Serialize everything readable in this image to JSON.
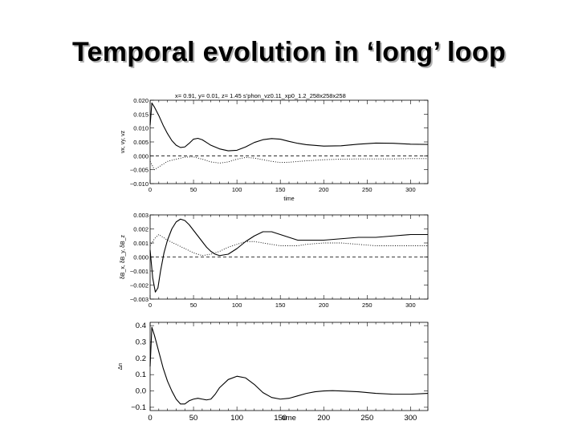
{
  "slide": {
    "title": "Temporal evolution in ‘long’ loop"
  },
  "figure_header": "x= 0.91, y= 0.01, z= 1.45 s’phon_vz0.11_xp0_1.2_258x258x258",
  "chart_data": [
    {
      "type": "line",
      "xlabel": "time",
      "ylabel": "v<sub>x</sub>, v<sub>y</sub>, v<sub>z</sub>",
      "ylabel_text": "vx, vy, vz",
      "xlim": [
        0,
        320
      ],
      "ylim": [
        -0.01,
        0.02
      ],
      "x_ticks": [
        0,
        50,
        100,
        150,
        200,
        250,
        300
      ],
      "y_ticks": [
        0.02,
        0.015,
        0.01,
        0.005,
        0.0,
        -0.005,
        -0.01
      ],
      "y_tick_labels": [
        "0.020",
        "0.015",
        "0.010",
        "0.005",
        "0.000",
        "−0.005",
        "−0.010"
      ],
      "series": [
        {
          "style": "solid",
          "x": [
            0,
            2,
            5,
            10,
            15,
            20,
            25,
            30,
            35,
            40,
            45,
            50,
            55,
            60,
            65,
            70,
            80,
            90,
            100,
            110,
            120,
            130,
            140,
            150,
            160,
            170,
            180,
            200,
            220,
            240,
            260,
            280,
            300,
            320
          ],
          "y": [
            0.011,
            0.019,
            0.0175,
            0.0145,
            0.011,
            0.008,
            0.0055,
            0.0038,
            0.003,
            0.0032,
            0.0045,
            0.006,
            0.0063,
            0.0058,
            0.0048,
            0.0038,
            0.0025,
            0.0018,
            0.002,
            0.0032,
            0.0048,
            0.0058,
            0.0062,
            0.006,
            0.0052,
            0.0045,
            0.004,
            0.0035,
            0.0036,
            0.0042,
            0.0046,
            0.0045,
            0.0042,
            0.0041
          ]
        },
        {
          "style": "dashed",
          "x": [
            0,
            320
          ],
          "y": [
            0.0,
            0.0
          ]
        },
        {
          "style": "dotted",
          "x": [
            0,
            5,
            10,
            20,
            30,
            40,
            50,
            60,
            70,
            80,
            90,
            100,
            110,
            120,
            130,
            140,
            150,
            160,
            180,
            200,
            220,
            240,
            260,
            280,
            300,
            320
          ],
          "y": [
            -0.002,
            -0.005,
            -0.004,
            -0.002,
            -0.0012,
            -0.0005,
            -0.0004,
            -0.0012,
            -0.0022,
            -0.0026,
            -0.0022,
            -0.0012,
            -0.0006,
            -0.0008,
            -0.0014,
            -0.002,
            -0.0024,
            -0.0023,
            -0.0018,
            -0.0014,
            -0.0012,
            -0.0011,
            -0.0011,
            -0.0011,
            -0.001,
            -0.001
          ]
        }
      ]
    },
    {
      "type": "line",
      "xlabel": "",
      "ylabel_text": "δB_x, δB_y, δB_z",
      "xlim": [
        0,
        320
      ],
      "ylim": [
        -0.003,
        0.003
      ],
      "x_ticks": [
        0,
        50,
        100,
        150,
        200,
        250,
        300
      ],
      "y_ticks": [
        0.003,
        0.002,
        0.001,
        0.0,
        -0.001,
        -0.002,
        -0.003
      ],
      "y_tick_labels": [
        "0.003",
        "0.002",
        "0.001",
        "0.000",
        "−0.001",
        "−0.002",
        "−0.003"
      ],
      "series": [
        {
          "style": "solid",
          "x": [
            0,
            3,
            6,
            9,
            12,
            16,
            20,
            25,
            30,
            35,
            40,
            45,
            50,
            55,
            60,
            65,
            70,
            75,
            80,
            90,
            100,
            110,
            120,
            130,
            140,
            150,
            160,
            170,
            180,
            200,
            220,
            240,
            260,
            280,
            300,
            320
          ],
          "y": [
            0.0005,
            -0.0015,
            -0.0025,
            -0.0022,
            -0.001,
            0.0003,
            0.0012,
            0.002,
            0.0025,
            0.0027,
            0.0026,
            0.0023,
            0.0019,
            0.0015,
            0.0011,
            0.0007,
            0.0004,
            0.0002,
            0.0001,
            0.0002,
            0.0006,
            0.0011,
            0.0015,
            0.0018,
            0.0018,
            0.0016,
            0.0014,
            0.0012,
            0.0012,
            0.0012,
            0.0013,
            0.0014,
            0.0014,
            0.0015,
            0.0016,
            0.0016
          ]
        },
        {
          "style": "dashed",
          "x": [
            0,
            320
          ],
          "y": [
            0.0,
            0.0
          ]
        },
        {
          "style": "dotted",
          "x": [
            0,
            5,
            10,
            15,
            20,
            30,
            40,
            50,
            60,
            70,
            80,
            90,
            100,
            110,
            120,
            130,
            140,
            150,
            160,
            170,
            180,
            200,
            220,
            240,
            260,
            280,
            300,
            320
          ],
          "y": [
            0.0008,
            0.0013,
            0.0016,
            0.0014,
            0.0012,
            0.0009,
            0.0006,
            0.0003,
            0.0001,
            0.0002,
            0.0004,
            0.0007,
            0.0009,
            0.0011,
            0.0011,
            0.001,
            0.0009,
            0.0008,
            0.0008,
            0.0008,
            0.0009,
            0.001,
            0.001,
            0.0009,
            0.0008,
            0.0008,
            0.0008,
            0.0008
          ]
        }
      ]
    },
    {
      "type": "line",
      "xlabel": "time",
      "ylabel_text": "Δn",
      "xlim": [
        0,
        320
      ],
      "ylim": [
        -0.12,
        0.42
      ],
      "x_ticks": [
        0,
        50,
        100,
        150,
        200,
        250,
        300
      ],
      "y_ticks": [
        0.4,
        0.3,
        0.2,
        0.1,
        0.0,
        -0.1
      ],
      "y_tick_labels": [
        "0.4",
        "0.3",
        "0.2",
        "0.1",
        "0.0",
        "−0.1"
      ],
      "series": [
        {
          "style": "solid",
          "x": [
            0,
            2,
            5,
            10,
            15,
            20,
            25,
            30,
            35,
            40,
            45,
            50,
            55,
            60,
            65,
            70,
            75,
            80,
            90,
            100,
            110,
            120,
            130,
            140,
            150,
            160,
            170,
            180,
            190,
            200,
            210,
            220,
            240,
            260,
            280,
            300,
            320
          ],
          "y": [
            0.15,
            0.39,
            0.34,
            0.24,
            0.14,
            0.06,
            0.0,
            -0.05,
            -0.08,
            -0.08,
            -0.06,
            -0.05,
            -0.045,
            -0.05,
            -0.055,
            -0.05,
            -0.02,
            0.02,
            0.07,
            0.09,
            0.08,
            0.04,
            -0.01,
            -0.04,
            -0.05,
            -0.045,
            -0.03,
            -0.015,
            -0.005,
            0.0,
            0.002,
            0.0,
            -0.005,
            -0.015,
            -0.02,
            -0.02,
            -0.015
          ]
        }
      ]
    }
  ]
}
